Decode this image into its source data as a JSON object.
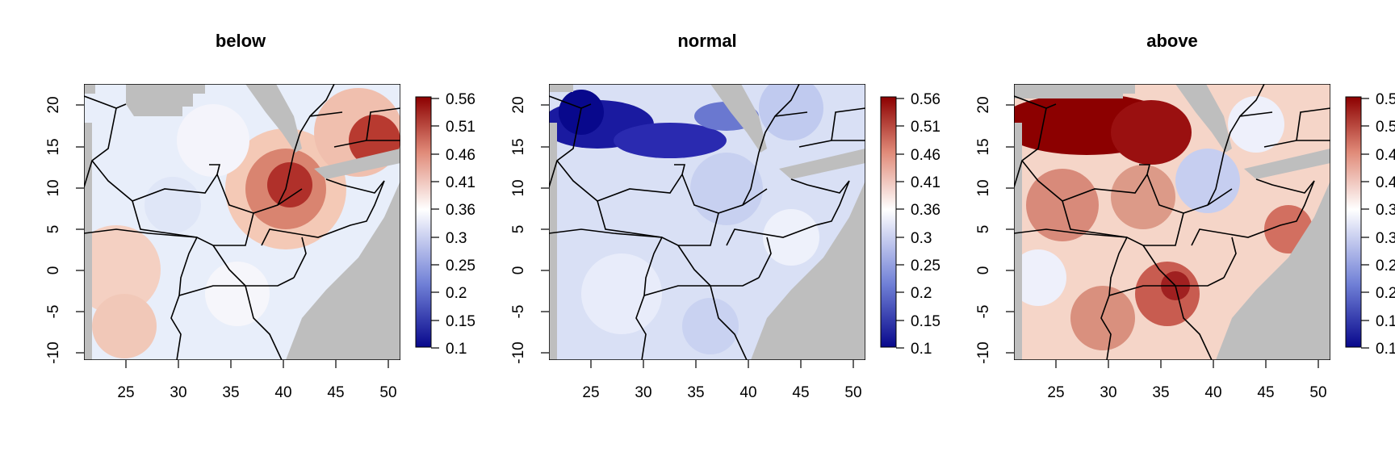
{
  "panels": [
    {
      "title": "below"
    },
    {
      "title": "normal"
    },
    {
      "title": "above"
    }
  ],
  "x_ticks": [
    "25",
    "30",
    "35",
    "40",
    "45",
    "50"
  ],
  "y_ticks": [
    "20",
    "15",
    "10",
    "5",
    "0",
    "-5",
    "-10"
  ],
  "legend_ticks": [
    "0.56",
    "0.51",
    "0.46",
    "0.41",
    "0.36",
    "0.3",
    "0.25",
    "0.2",
    "0.15",
    "0.1"
  ],
  "colors": {
    "low": "#08088c",
    "mid": "#ffffff",
    "high": "#8c0000",
    "land_mask": "#bebebe",
    "border": "#000000"
  },
  "chart_data": {
    "type": "heatmap",
    "x_range": [
      21,
      51.5
    ],
    "y_range": [
      -11,
      22.5
    ],
    "value_range": [
      0.1,
      0.56
    ],
    "colormap": "blue-white-red",
    "panels": [
      "below",
      "normal",
      "above"
    ]
  }
}
